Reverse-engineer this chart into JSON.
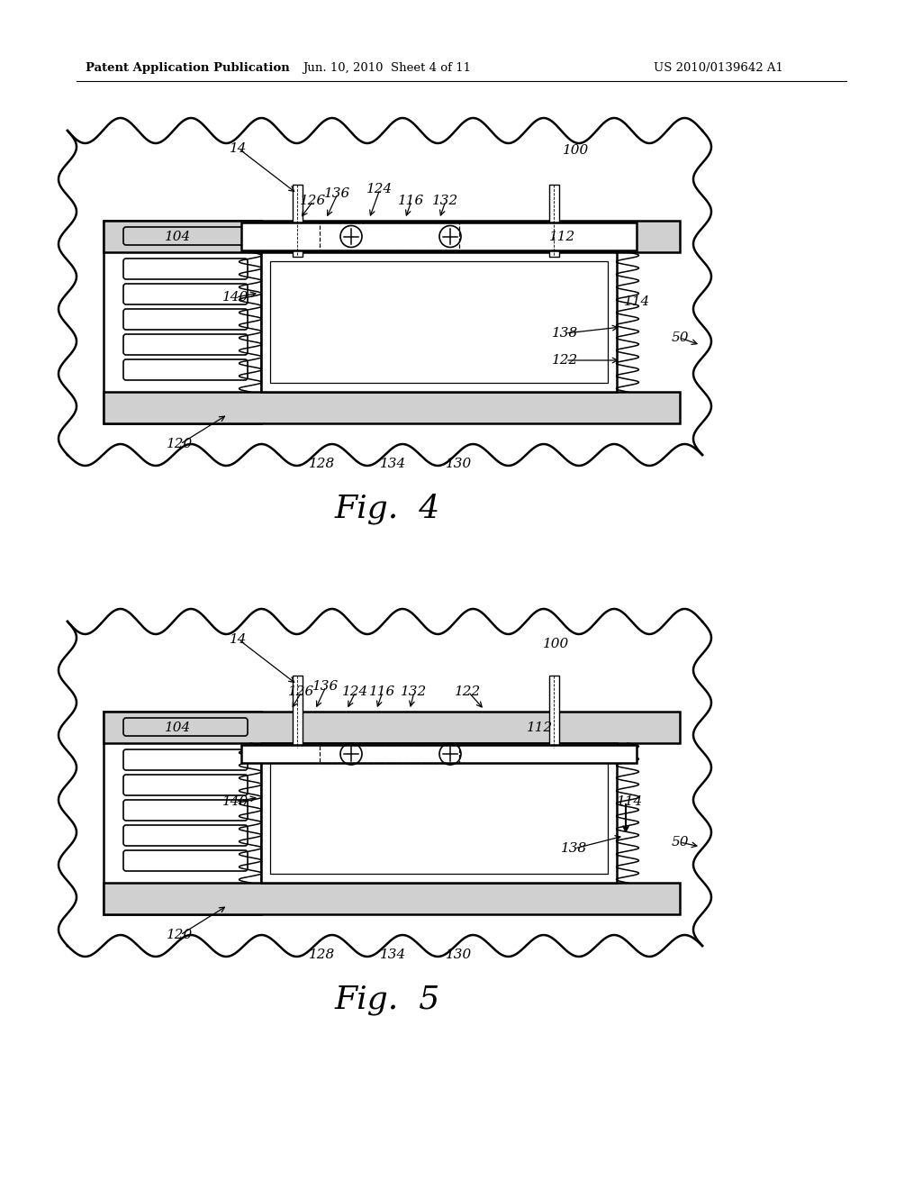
{
  "bg_color": "#ffffff",
  "line_color": "#000000",
  "header_left": "Patent Application Publication",
  "header_mid": "Jun. 10, 2010  Sheet 4 of 11",
  "header_right": "US 2010/0139642 A1",
  "fig4_title": "Fig.  4",
  "fig5_title": "Fig.  5"
}
